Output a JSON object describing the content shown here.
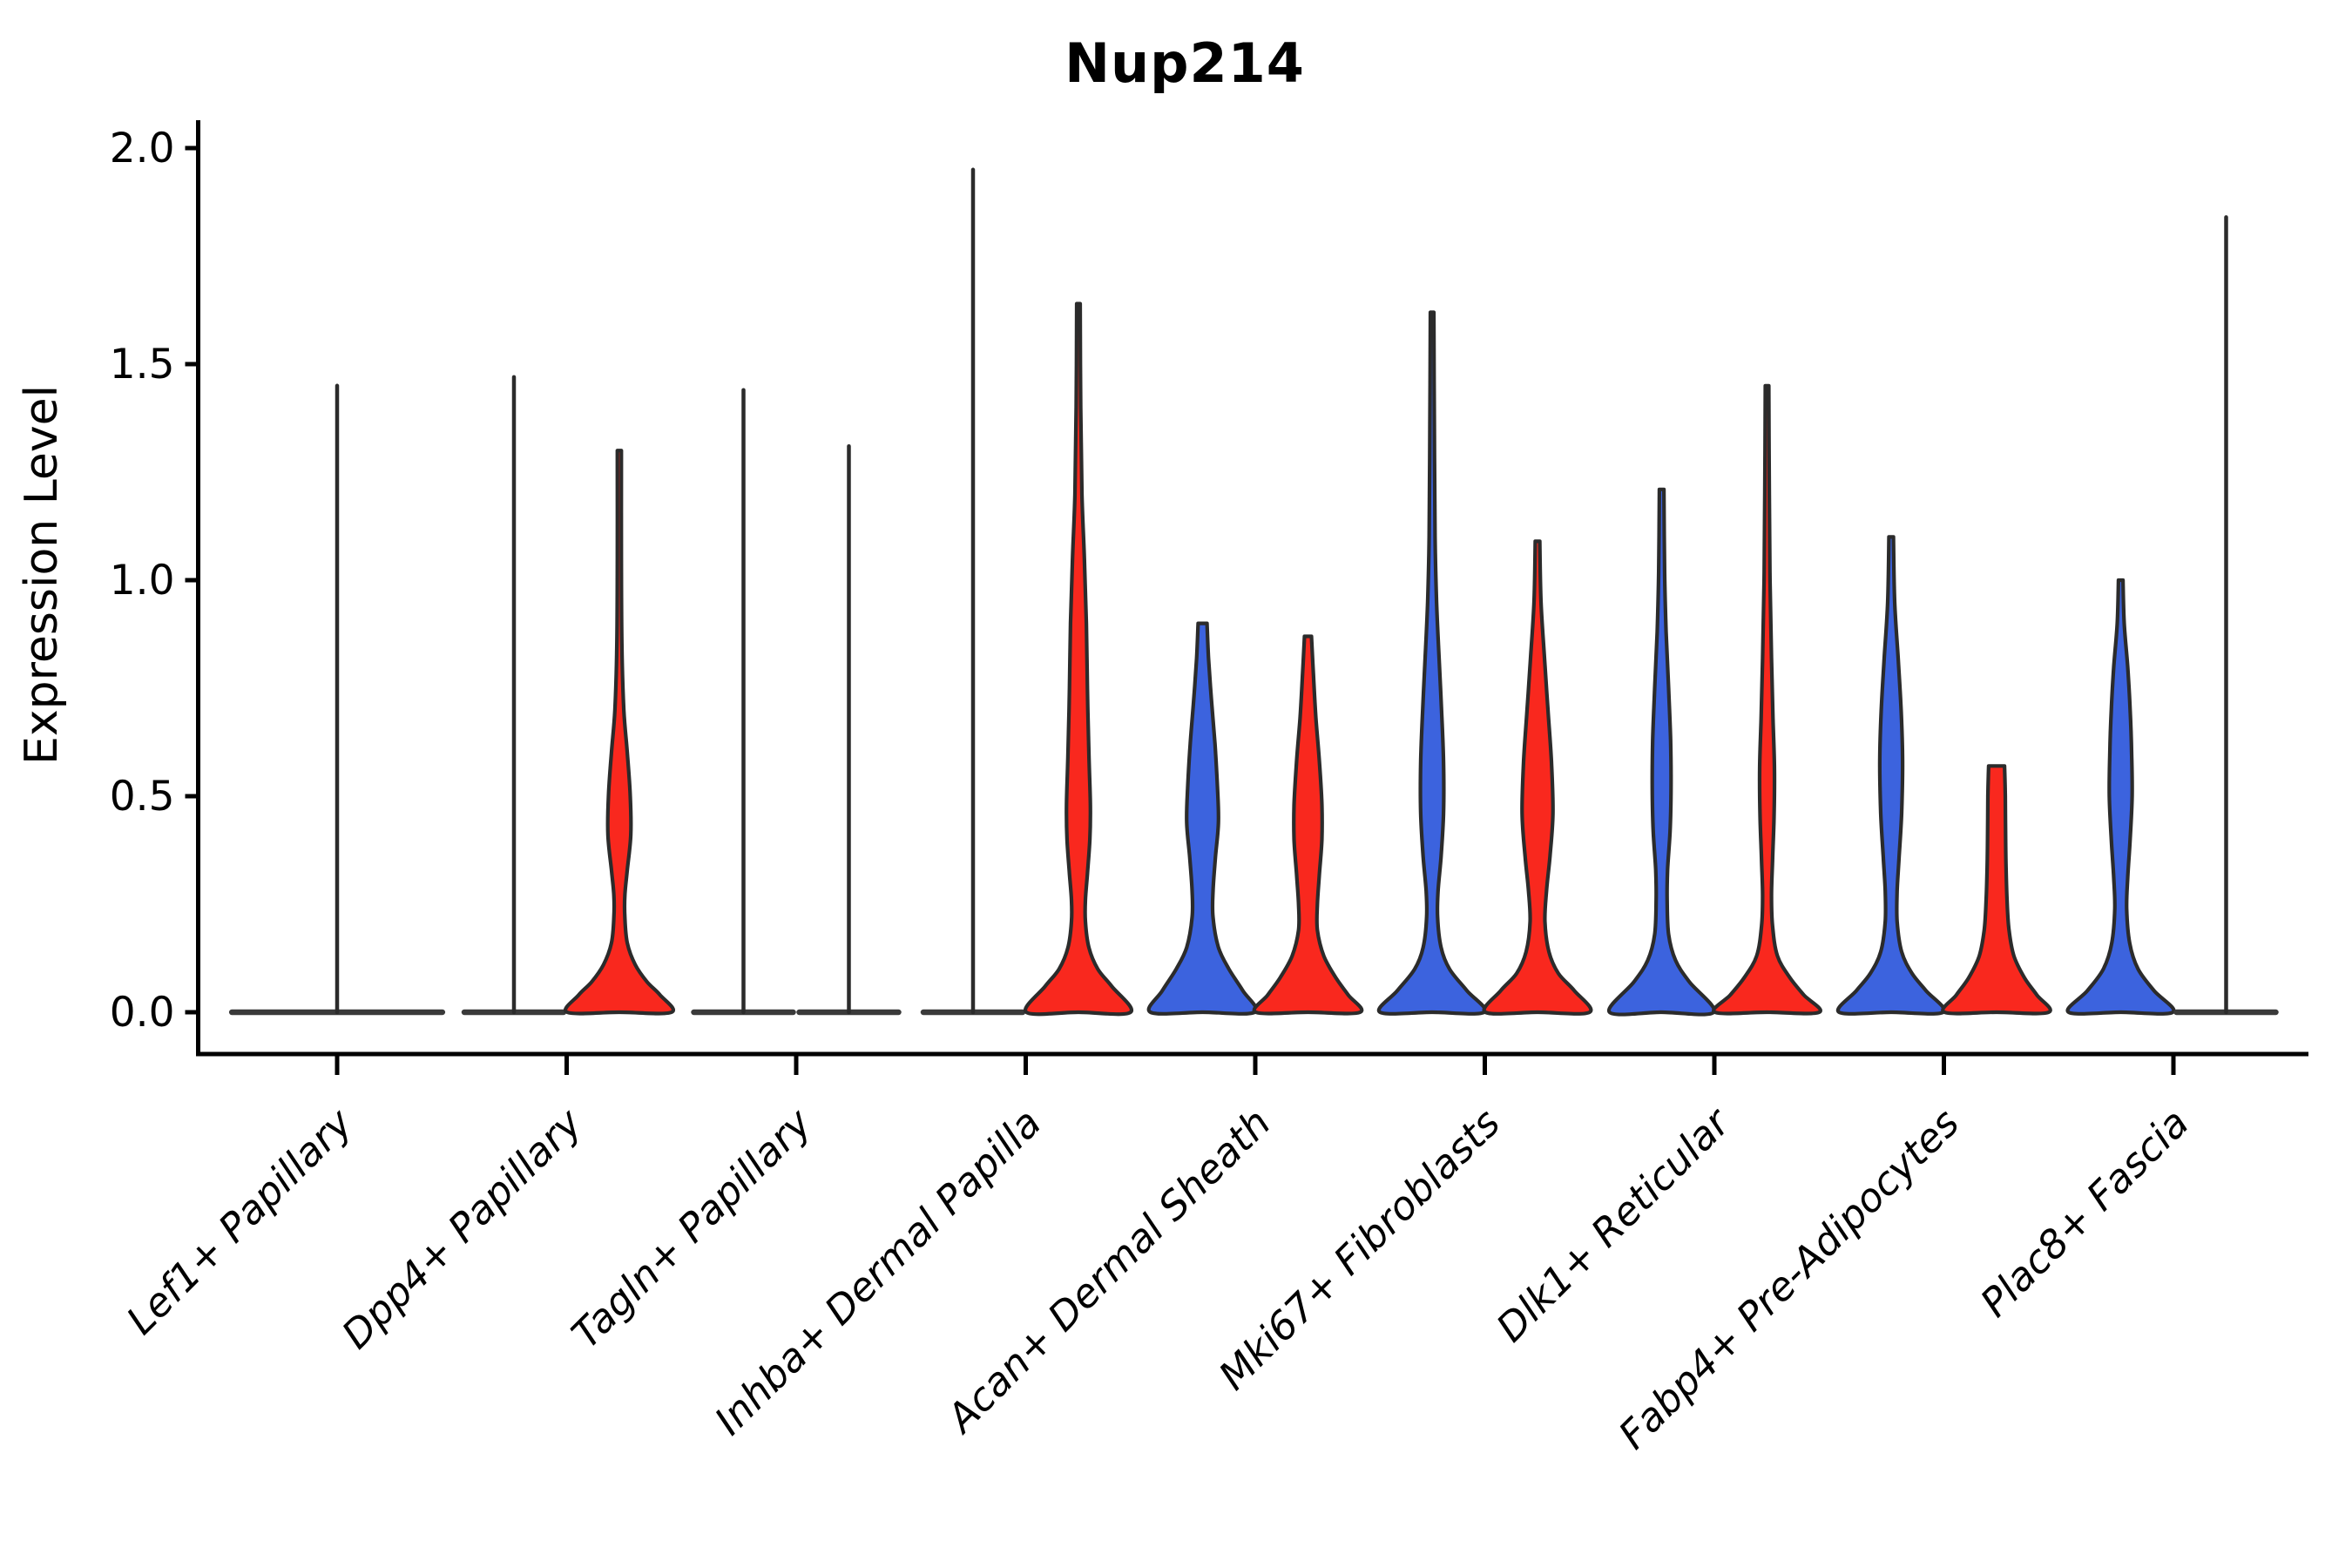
{
  "chart_data": {
    "type": "violin",
    "title": "Nup214",
    "ylabel": "Expression Level",
    "xlabel": "",
    "ylim": [
      0,
      2.0
    ],
    "yticks": [
      0.0,
      0.5,
      1.0,
      1.5,
      2.0
    ],
    "ytick_labels": [
      "0.0",
      "0.5",
      "1.0",
      "1.5",
      "2.0"
    ],
    "grid": false,
    "legend": "none",
    "categories": [
      "Lef1+ Papillary",
      "Dpp4+ Papillary",
      "Tagln+ Papillary",
      "Inhba+ Dermal Papilla",
      "Acan+ Dermal Sheath",
      "Mki67+ Fibroblasts",
      "Dlk1+ Reticular",
      "Fabp4+ Pre-Adipocytes",
      "Plac8+ Fascia"
    ],
    "colors": {
      "blue": "#3C63DE",
      "red": "#F9281E",
      "outline": "#2B2B2B",
      "axis": "#000000"
    },
    "violins": [
      {
        "category": "Lef1+ Papillary",
        "group": 0,
        "side": "center",
        "color_key": null,
        "shape": "flat_spike",
        "max_value": 1.45,
        "base_halfwidth": 2.12
      },
      {
        "category": "Dpp4+ Papillary",
        "group": 1,
        "side": "left",
        "color_key": "blue",
        "shape": "flat_spike",
        "max_value": 1.47,
        "base_halfwidth": 1.0
      },
      {
        "category": "Dpp4+ Papillary",
        "group": 1,
        "side": "right",
        "color_key": "red",
        "shape": "density",
        "max_value": 1.3,
        "profile": [
          [
            1.3,
            0.04
          ],
          [
            1.05,
            0.04
          ],
          [
            0.85,
            0.05
          ],
          [
            0.7,
            0.09
          ],
          [
            0.6,
            0.16
          ],
          [
            0.5,
            0.22
          ],
          [
            0.41,
            0.23
          ],
          [
            0.33,
            0.16
          ],
          [
            0.27,
            0.11
          ],
          [
            0.22,
            0.11
          ],
          [
            0.16,
            0.16
          ],
          [
            0.11,
            0.32
          ],
          [
            0.07,
            0.56
          ],
          [
            0.04,
            0.82
          ],
          [
            0.0,
            1.05
          ]
        ]
      },
      {
        "category": "Tagln+ Papillary",
        "group": 2,
        "side": "left",
        "color_key": "blue",
        "shape": "flat_spike",
        "max_value": 1.44,
        "base_halfwidth": 1.0
      },
      {
        "category": "Tagln+ Papillary",
        "group": 2,
        "side": "right",
        "color_key": "red",
        "shape": "flat_spike",
        "max_value": 1.31,
        "base_halfwidth": 1.0
      },
      {
        "category": "Inhba+ Dermal Papilla",
        "group": 3,
        "side": "left",
        "color_key": "blue",
        "shape": "flat_spike",
        "max_value": 1.95,
        "base_halfwidth": 1.0
      },
      {
        "category": "Inhba+ Dermal Papilla",
        "group": 3,
        "side": "right",
        "color_key": "red",
        "shape": "density",
        "max_value": 1.64,
        "profile": [
          [
            1.64,
            0.035
          ],
          [
            1.4,
            0.045
          ],
          [
            1.2,
            0.07
          ],
          [
            1.05,
            0.12
          ],
          [
            0.9,
            0.16
          ],
          [
            0.75,
            0.18
          ],
          [
            0.6,
            0.21
          ],
          [
            0.48,
            0.24
          ],
          [
            0.4,
            0.23
          ],
          [
            0.32,
            0.18
          ],
          [
            0.26,
            0.14
          ],
          [
            0.21,
            0.14
          ],
          [
            0.15,
            0.21
          ],
          [
            0.1,
            0.39
          ],
          [
            0.06,
            0.67
          ],
          [
            0.0,
            1.05
          ]
        ]
      },
      {
        "category": "Acan+ Dermal Sheath",
        "group": 4,
        "side": "left",
        "color_key": "blue",
        "shape": "density",
        "max_value": 0.9,
        "profile": [
          [
            0.9,
            0.09
          ],
          [
            0.82,
            0.12
          ],
          [
            0.72,
            0.18
          ],
          [
            0.62,
            0.25
          ],
          [
            0.52,
            0.3
          ],
          [
            0.44,
            0.32
          ],
          [
            0.36,
            0.26
          ],
          [
            0.28,
            0.21
          ],
          [
            0.22,
            0.21
          ],
          [
            0.15,
            0.32
          ],
          [
            0.1,
            0.53
          ],
          [
            0.05,
            0.81
          ],
          [
            0.0,
            1.05
          ]
        ]
      },
      {
        "category": "Acan+ Dermal Sheath",
        "group": 4,
        "side": "right",
        "color_key": "red",
        "shape": "density",
        "max_value": 0.87,
        "profile": [
          [
            0.87,
            0.07
          ],
          [
            0.78,
            0.11
          ],
          [
            0.68,
            0.16
          ],
          [
            0.58,
            0.23
          ],
          [
            0.48,
            0.28
          ],
          [
            0.4,
            0.28
          ],
          [
            0.32,
            0.23
          ],
          [
            0.25,
            0.19
          ],
          [
            0.19,
            0.19
          ],
          [
            0.13,
            0.32
          ],
          [
            0.08,
            0.56
          ],
          [
            0.04,
            0.81
          ],
          [
            0.0,
            1.05
          ]
        ]
      },
      {
        "category": "Mki67+ Fibroblasts",
        "group": 5,
        "side": "left",
        "color_key": "blue",
        "shape": "density",
        "max_value": 1.62,
        "profile": [
          [
            1.62,
            0.035
          ],
          [
            1.35,
            0.045
          ],
          [
            1.1,
            0.06
          ],
          [
            0.95,
            0.09
          ],
          [
            0.82,
            0.14
          ],
          [
            0.7,
            0.19
          ],
          [
            0.58,
            0.23
          ],
          [
            0.46,
            0.23
          ],
          [
            0.36,
            0.18
          ],
          [
            0.28,
            0.12
          ],
          [
            0.22,
            0.11
          ],
          [
            0.15,
            0.18
          ],
          [
            0.1,
            0.35
          ],
          [
            0.05,
            0.7
          ],
          [
            0.0,
            1.05
          ]
        ]
      },
      {
        "category": "Mki67+ Fibroblasts",
        "group": 5,
        "side": "right",
        "color_key": "red",
        "shape": "density",
        "max_value": 1.09,
        "profile": [
          [
            1.09,
            0.045
          ],
          [
            0.95,
            0.07
          ],
          [
            0.82,
            0.14
          ],
          [
            0.7,
            0.21
          ],
          [
            0.58,
            0.28
          ],
          [
            0.46,
            0.31
          ],
          [
            0.36,
            0.25
          ],
          [
            0.28,
            0.18
          ],
          [
            0.21,
            0.15
          ],
          [
            0.14,
            0.23
          ],
          [
            0.09,
            0.42
          ],
          [
            0.05,
            0.74
          ],
          [
            0.0,
            1.05
          ]
        ]
      },
      {
        "category": "Dlk1+ Reticular",
        "group": 6,
        "side": "left",
        "color_key": "blue",
        "shape": "density",
        "max_value": 1.21,
        "profile": [
          [
            1.21,
            0.045
          ],
          [
            1.02,
            0.06
          ],
          [
            0.88,
            0.09
          ],
          [
            0.75,
            0.14
          ],
          [
            0.63,
            0.18
          ],
          [
            0.52,
            0.19
          ],
          [
            0.42,
            0.17
          ],
          [
            0.33,
            0.12
          ],
          [
            0.26,
            0.11
          ],
          [
            0.18,
            0.14
          ],
          [
            0.12,
            0.28
          ],
          [
            0.07,
            0.56
          ],
          [
            0.0,
            1.05
          ]
        ]
      },
      {
        "category": "Dlk1+ Reticular",
        "group": 6,
        "side": "right",
        "color_key": "red",
        "shape": "density",
        "max_value": 1.45,
        "profile": [
          [
            1.45,
            0.035
          ],
          [
            1.2,
            0.045
          ],
          [
            1.0,
            0.06
          ],
          [
            0.82,
            0.09
          ],
          [
            0.68,
            0.12
          ],
          [
            0.56,
            0.15
          ],
          [
            0.45,
            0.14
          ],
          [
            0.35,
            0.11
          ],
          [
            0.27,
            0.09
          ],
          [
            0.2,
            0.11
          ],
          [
            0.13,
            0.21
          ],
          [
            0.08,
            0.46
          ],
          [
            0.04,
            0.74
          ],
          [
            0.0,
            1.05
          ]
        ]
      },
      {
        "category": "Fabp4+ Pre-Adipocytes",
        "group": 7,
        "side": "left",
        "color_key": "blue",
        "shape": "density",
        "max_value": 1.1,
        "profile": [
          [
            1.1,
            0.045
          ],
          [
            0.95,
            0.07
          ],
          [
            0.82,
            0.14
          ],
          [
            0.7,
            0.2
          ],
          [
            0.58,
            0.23
          ],
          [
            0.46,
            0.21
          ],
          [
            0.36,
            0.16
          ],
          [
            0.28,
            0.12
          ],
          [
            0.21,
            0.12
          ],
          [
            0.14,
            0.21
          ],
          [
            0.09,
            0.42
          ],
          [
            0.05,
            0.7
          ],
          [
            0.0,
            1.05
          ]
        ]
      },
      {
        "category": "Fabp4+ Pre-Adipocytes",
        "group": 7,
        "side": "right",
        "color_key": "red",
        "shape": "density",
        "max_value": 0.57,
        "profile": [
          [
            0.57,
            0.16
          ],
          [
            0.5,
            0.175
          ],
          [
            0.42,
            0.18
          ],
          [
            0.34,
            0.19
          ],
          [
            0.26,
            0.21
          ],
          [
            0.19,
            0.25
          ],
          [
            0.13,
            0.35
          ],
          [
            0.08,
            0.56
          ],
          [
            0.04,
            0.81
          ],
          [
            0.0,
            1.05
          ]
        ]
      },
      {
        "category": "Plac8+ Fascia",
        "group": 8,
        "side": "left",
        "color_key": "blue",
        "shape": "density",
        "max_value": 1.0,
        "profile": [
          [
            1.0,
            0.045
          ],
          [
            0.9,
            0.07
          ],
          [
            0.8,
            0.14
          ],
          [
            0.7,
            0.19
          ],
          [
            0.6,
            0.22
          ],
          [
            0.5,
            0.23
          ],
          [
            0.4,
            0.19
          ],
          [
            0.31,
            0.14
          ],
          [
            0.24,
            0.12
          ],
          [
            0.16,
            0.18
          ],
          [
            0.1,
            0.35
          ],
          [
            0.05,
            0.67
          ],
          [
            0.0,
            1.05
          ]
        ]
      },
      {
        "category": "Plac8+ Fascia",
        "group": 8,
        "side": "right",
        "color_key": "red",
        "shape": "flat_spike",
        "max_value": 1.84,
        "base_halfwidth": 1.0
      }
    ]
  }
}
